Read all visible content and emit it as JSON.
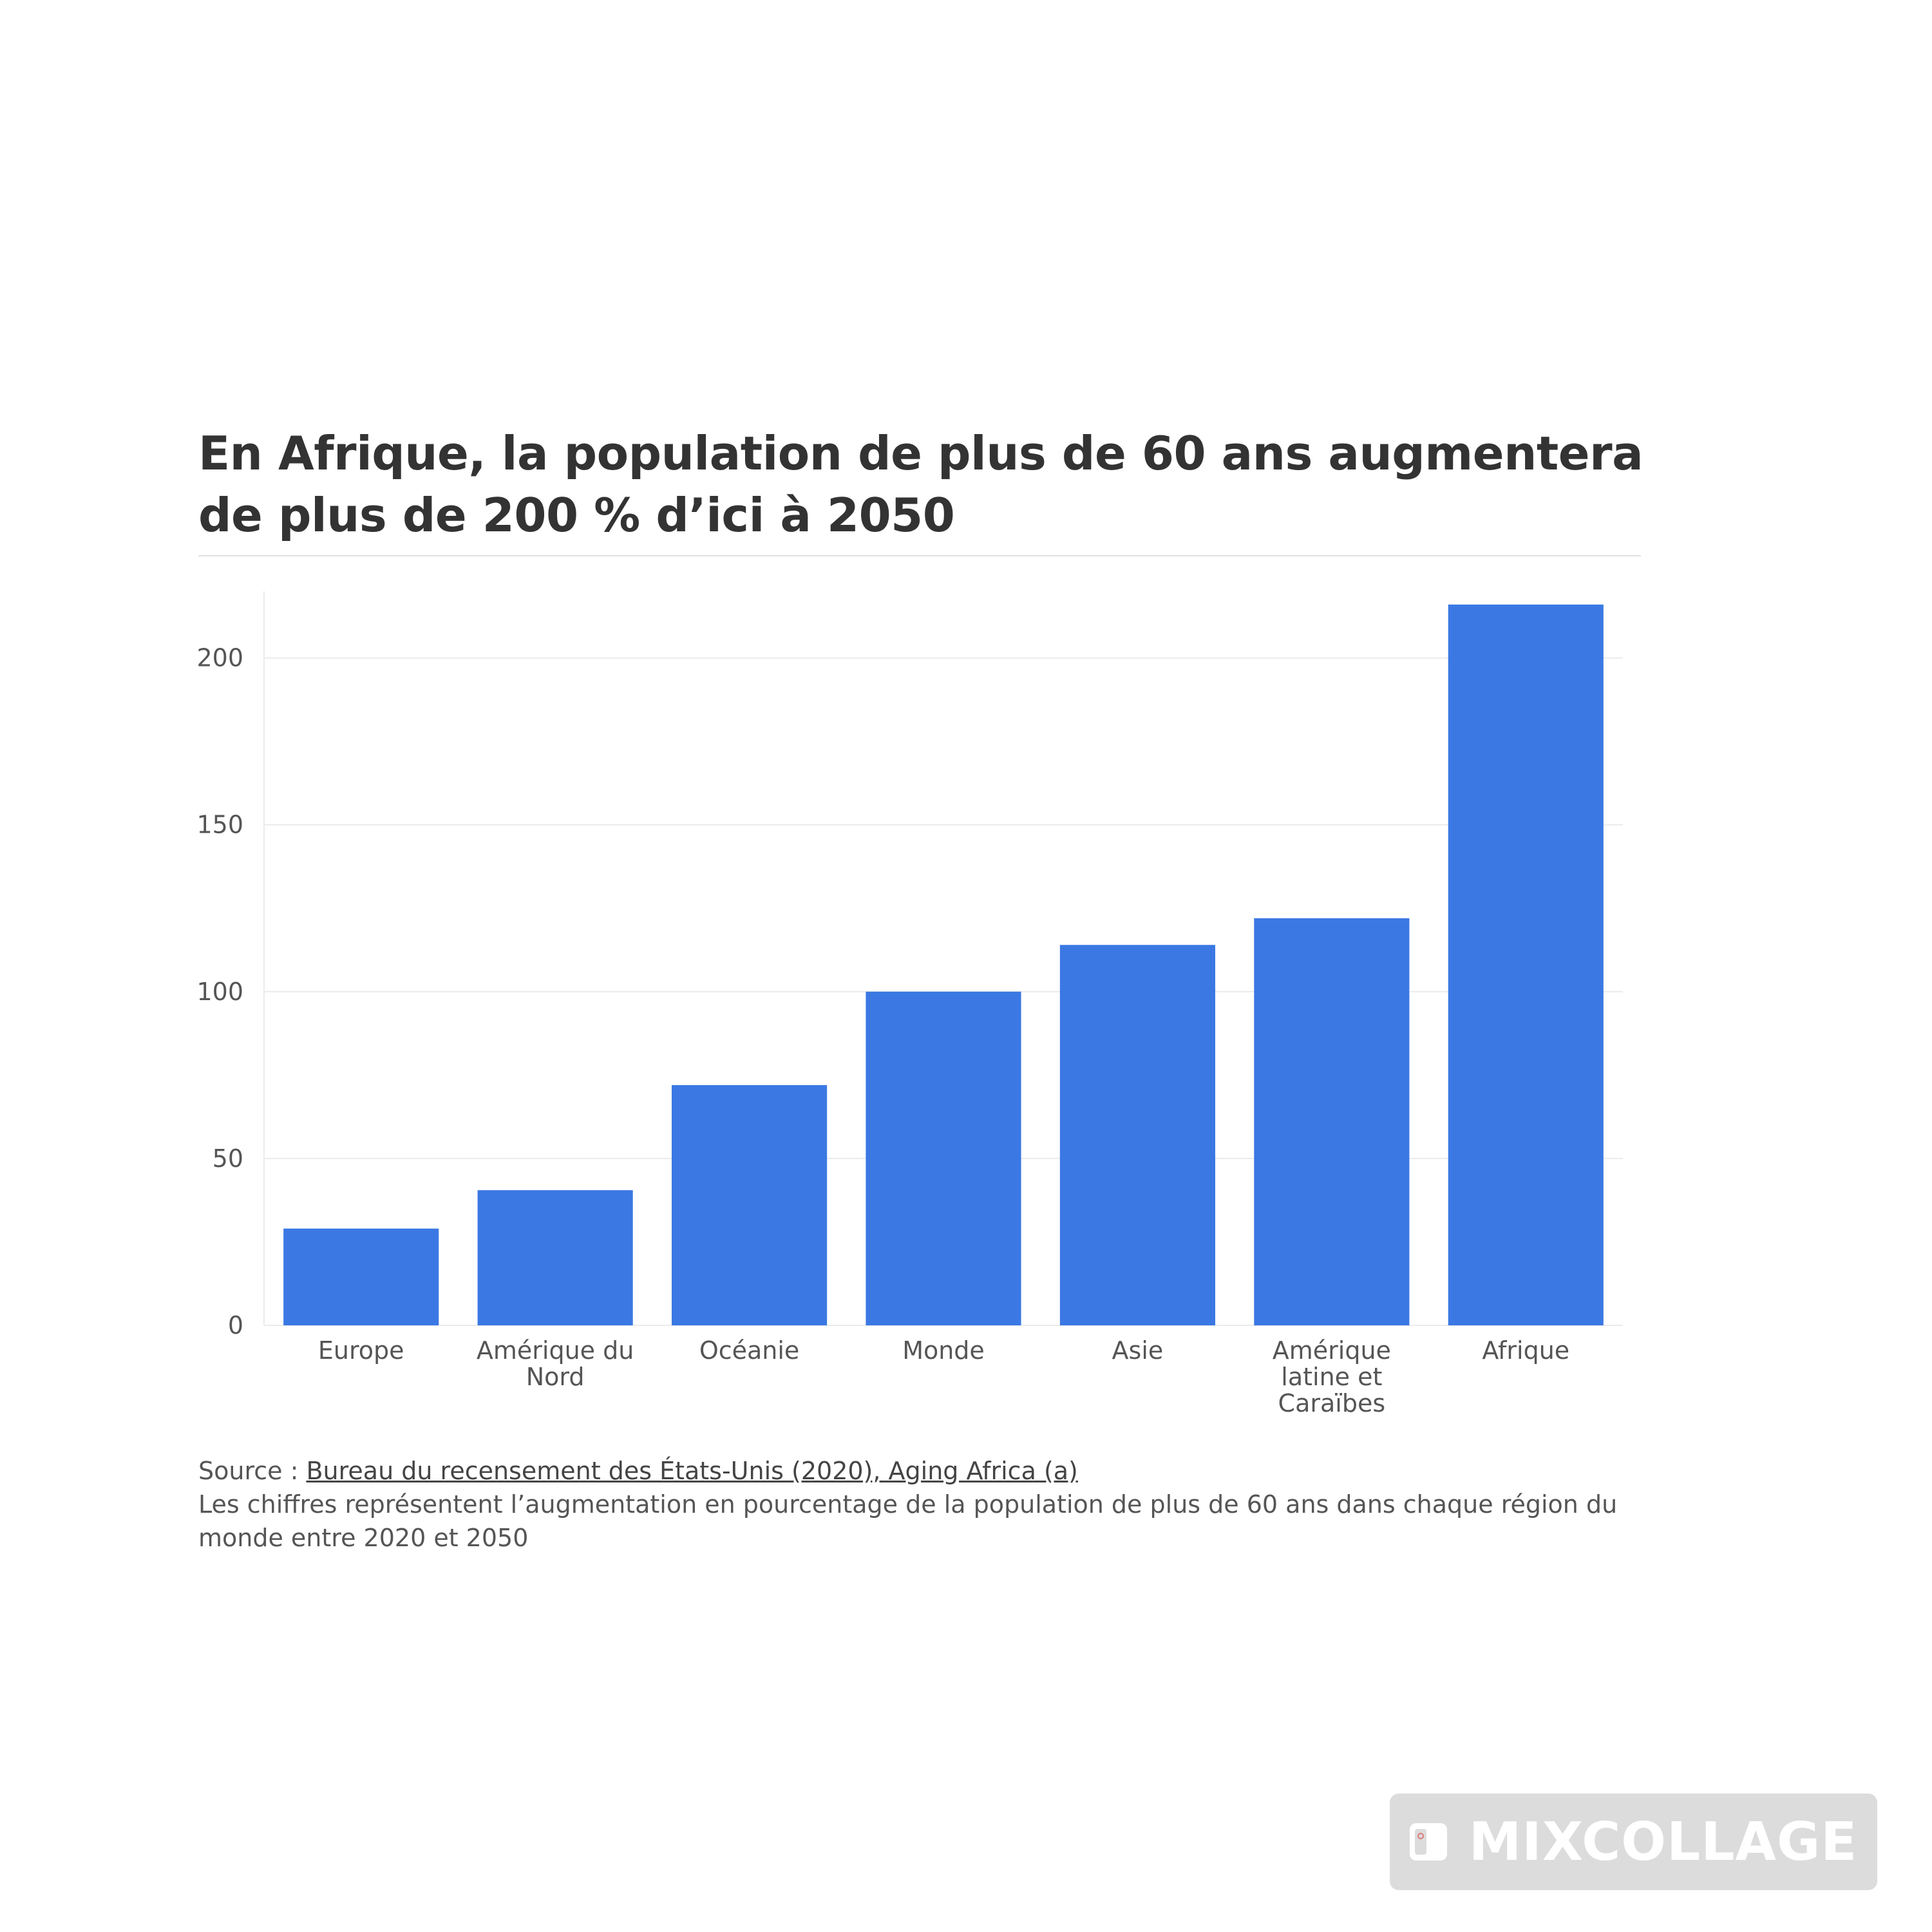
{
  "chart_data": {
    "type": "bar",
    "title": "En Afrique, la population de plus de 60 ans augmentera de plus de 200 % d’ici à 2050",
    "xlabel": "",
    "ylabel": "",
    "categories": [
      "Europe",
      "Amérique du Nord",
      "Océanie",
      "Monde",
      "Asie",
      "Amérique latine et Caraïbes",
      "Afrique"
    ],
    "category_label_lines": [
      [
        "Europe"
      ],
      [
        "Amérique du",
        "Nord"
      ],
      [
        "Océanie"
      ],
      [
        "Monde"
      ],
      [
        "Asie"
      ],
      [
        "Amérique",
        "latine et",
        "Caraïbes"
      ],
      [
        "Afrique"
      ]
    ],
    "values": [
      29,
      40.5,
      72,
      100,
      114,
      122,
      216
    ],
    "ylim": [
      0,
      220
    ],
    "yticks": [
      0,
      50,
      100,
      150,
      200
    ],
    "grid": true,
    "legend": "none",
    "bar_color": "#3b78e3",
    "grid_color": "#ebebeb"
  },
  "notes": {
    "source_prefix": "Source : ",
    "source_link": "Bureau du recensement des États-Unis (2020), Aging Africa (a)",
    "description": "Les chiffres représentent l’augmentation en pourcentage de la population de plus de 60 ans dans chaque région du monde entre 2020 et 2050"
  },
  "watermark": {
    "text": "MIXCOLLAGE",
    "icon": "mixcollage-logo-icon"
  }
}
